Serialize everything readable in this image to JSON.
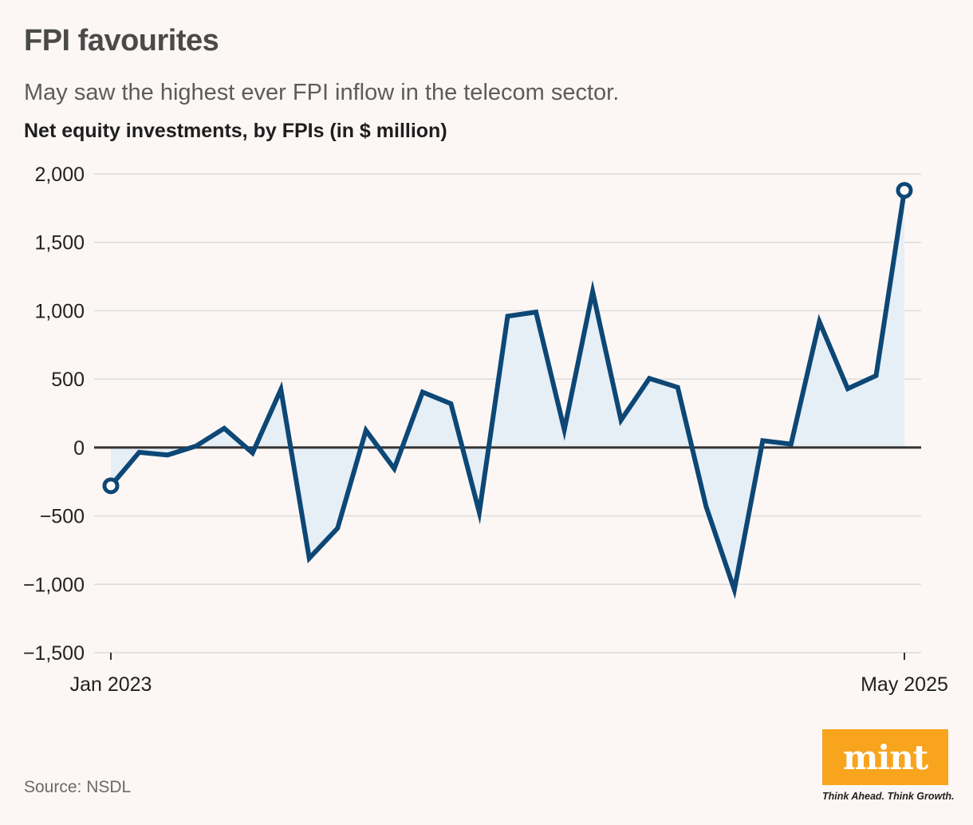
{
  "header": {
    "title": "FPI favourites",
    "subtitle": "May saw the highest ever FPI inflow in the telecom sector.",
    "axis_title": "Net equity investments, by FPIs (in $ million)"
  },
  "footer": {
    "source": "Source: NSDL",
    "logo": "mint",
    "tagline": "Think Ahead. Think Growth."
  },
  "colors": {
    "line": "#0d4775",
    "fill": "#e6eef6",
    "zero_line": "#333333",
    "grid": "#dcdcdc",
    "logo_bg": "#f8a41c",
    "background": "#fcf7f5"
  },
  "chart_data": {
    "type": "area",
    "title": "FPI favourites",
    "ylabel": "Net equity investments, by FPIs (in $ million)",
    "xlabel": "",
    "ylim": [
      -1500,
      2000
    ],
    "yticks": [
      2000,
      1500,
      1000,
      500,
      0,
      -500,
      -1000,
      -1500
    ],
    "ytick_labels": [
      "2,000",
      "1,500",
      "1,000",
      "500",
      "0",
      "−500",
      "−1,000",
      "−1,500"
    ],
    "x_tick_labels": [
      "Jan 2023",
      "May 2025"
    ],
    "x": [
      "Jan 2023",
      "Feb 2023",
      "Mar 2023",
      "Apr 2023",
      "May 2023",
      "Jun 2023",
      "Jul 2023",
      "Aug 2023",
      "Sep 2023",
      "Oct 2023",
      "Nov 2023",
      "Dec 2023",
      "Jan 2024",
      "Feb 2024",
      "Mar 2024",
      "Apr 2024",
      "May 2024",
      "Jun 2024",
      "Jul 2024",
      "Aug 2024",
      "Sep 2024",
      "Oct 2024",
      "Nov 2024",
      "Dec 2024",
      "Jan 2025",
      "Feb 2025",
      "Mar 2025",
      "Apr 2025",
      "May 2025"
    ],
    "series": [
      {
        "name": "Net equity investments",
        "values": [
          -280,
          -35,
          -55,
          10,
          140,
          -40,
          425,
          -810,
          -590,
          125,
          -155,
          405,
          320,
          -475,
          960,
          990,
          130,
          1140,
          200,
          505,
          440,
          -430,
          -1040,
          50,
          25,
          920,
          430,
          525,
          1880
        ]
      }
    ],
    "highlighted_points": [
      "Jan 2023",
      "May 2025"
    ],
    "grid": true,
    "legend": "none"
  }
}
